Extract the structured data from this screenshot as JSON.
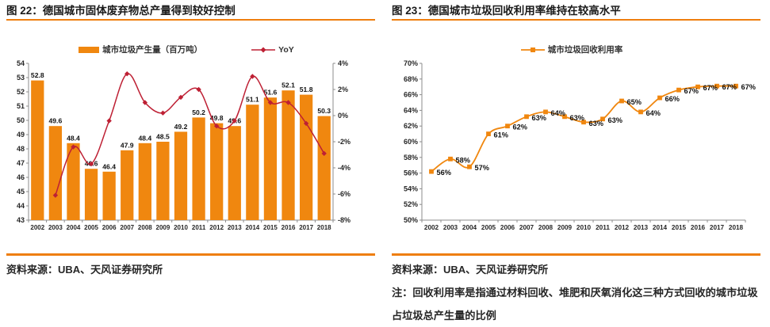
{
  "colors": {
    "orange": "#F0870F",
    "rule_orange": "#EE7E0E",
    "dark_red": "#BE2034",
    "axis_gray": "#8C8C8C",
    "text_dark": "#262626"
  },
  "left_panel": {
    "title": "图 22：德国城市固体废弃物总产量得到较好控制",
    "source": "资料来源：UBA、天风证券研究所"
  },
  "right_panel": {
    "title": "图 23：德国城市垃圾回收利用率维持在较高水平",
    "source": "资料来源：UBA、天风证券研究所",
    "note": "注：回收利用率是指通过材料回收、堆肥和厌氧消化这三种方式回收的城市垃圾占垃圾总产生量的比例"
  },
  "chart_data": [
    {
      "type": "bar+line",
      "title": "图 22：德国城市固体废弃物总产量得到较好控制",
      "categories": [
        "2002",
        "2003",
        "2004",
        "2005",
        "2006",
        "2007",
        "2008",
        "2009",
        "2010",
        "2011",
        "2012",
        "2013",
        "2014",
        "2015",
        "2016",
        "2017",
        "2018"
      ],
      "series": [
        {
          "name": "城市垃圾产生量（百万吨）",
          "type": "bar",
          "axis": "left",
          "values": [
            52.8,
            49.6,
            48.4,
            46.6,
            46.4,
            47.9,
            48.4,
            48.5,
            49.2,
            50.2,
            49.8,
            49.6,
            51.1,
            51.6,
            52.1,
            51.8,
            50.3
          ]
        },
        {
          "name": "YoY",
          "type": "line",
          "axis": "right",
          "values": [
            null,
            -6.1,
            -2.4,
            -3.7,
            -0.4,
            3.2,
            1.0,
            0.2,
            1.4,
            2.0,
            -0.8,
            -0.4,
            3.0,
            1.0,
            1.0,
            -0.6,
            -2.9
          ]
        }
      ],
      "left_axis": {
        "min": 43,
        "max": 54,
        "step": 1,
        "suffix": ""
      },
      "right_axis": {
        "min": -8,
        "max": 4,
        "step": 2,
        "suffix": "%"
      },
      "legend_position": "top",
      "grid": false
    },
    {
      "type": "line",
      "title": "图 23：德国城市垃圾回收利用率维持在较高水平",
      "categories": [
        "2002",
        "2003",
        "2004",
        "2005",
        "2006",
        "2007",
        "2008",
        "2009",
        "2010",
        "2011",
        "2012",
        "2013",
        "2014",
        "2015",
        "2016",
        "2017",
        "2018"
      ],
      "series": [
        {
          "name": "城市垃圾回收利用率",
          "values": [
            56.2,
            57.8,
            56.8,
            61.0,
            62.0,
            63.2,
            63.8,
            63.2,
            62.5,
            62.9,
            65.2,
            63.8,
            65.6,
            66.6,
            67.0,
            67.1,
            67.1
          ],
          "point_labels": [
            "56%",
            "58%",
            "57%",
            "61%",
            "62%",
            "63%",
            "64%",
            "63%",
            "63%",
            "63%",
            "65%",
            "64%",
            "66%",
            "67%",
            "67%",
            "67%",
            "67%"
          ]
        }
      ],
      "y_axis": {
        "min": 50,
        "max": 70,
        "step": 2,
        "suffix": "%"
      },
      "legend_position": "top",
      "grid": false
    }
  ]
}
